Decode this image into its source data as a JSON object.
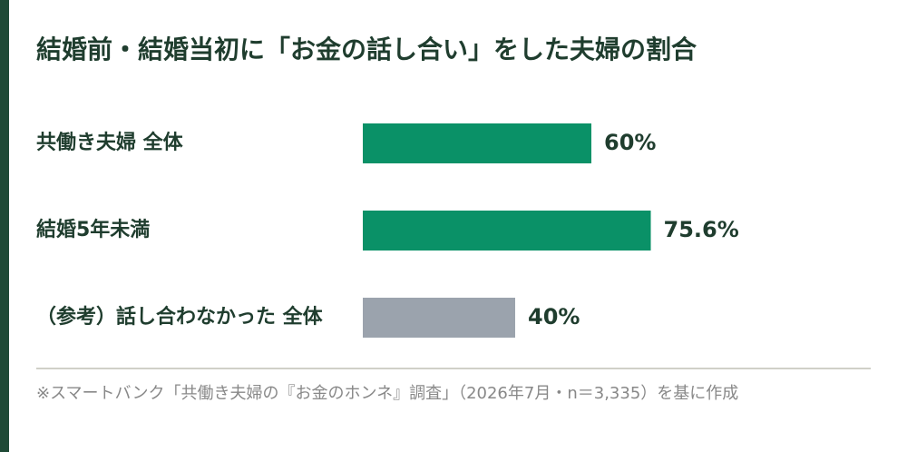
{
  "chart_data": {
    "type": "bar",
    "orientation": "horizontal",
    "title": "結婚前・結婚当初に「お金の話し合い」をした夫婦の割合",
    "categories": [
      "共働き夫婦 全体",
      "結婚5年未満",
      "（参考）話し合わなかった 全体"
    ],
    "values": [
      60,
      75.6,
      40
    ],
    "value_labels": [
      "60%",
      "75.6%",
      "40%"
    ],
    "colors": [
      "#0a9167",
      "#0a9167",
      "#9ba3ad"
    ],
    "xlim": [
      0,
      100
    ],
    "note": "※スマートバンク「共働き夫婦の『お金のホンネ』調査」（2026年7月・n＝3,335）を基に作成"
  }
}
